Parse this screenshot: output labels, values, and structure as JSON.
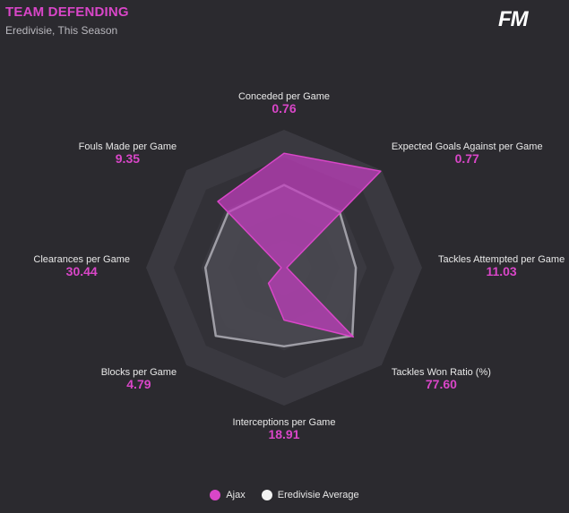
{
  "header": {
    "title": "TEAM DEFENDING",
    "subtitle": "Eredivisie, This Season",
    "logo": "FM"
  },
  "colors": {
    "accent": "#d946c8",
    "team_fill": "#c43fc0",
    "average_stroke": "#9f9ea6",
    "average_fill": "#4b4a52",
    "ring_light": "#3a3940",
    "ring_dark": "#323137",
    "background": "#2b2a2f"
  },
  "chart_data": {
    "type": "radar",
    "title": "TEAM DEFENDING",
    "axes": [
      "Conceded per Game",
      "Expected Goals Against per Game",
      "Tackles Attempted per Game",
      "Tackles Won Ratio (%)",
      "Interceptions per Game",
      "Blocks per Game",
      "Clearances per Game",
      "Fouls Made per Game"
    ],
    "value_labels": [
      "0.76",
      "0.77",
      "11.03",
      "77.60",
      "18.91",
      "4.79",
      "30.44",
      "9.35"
    ],
    "series": [
      {
        "name": "Ajax",
        "normalized": [
          0.83,
          0.99,
          0.02,
          0.71,
          0.38,
          0.16,
          0.02,
          0.68
        ]
      },
      {
        "name": "Eredivisie Average",
        "normalized": [
          0.6,
          0.57,
          0.52,
          0.7,
          0.57,
          0.7,
          0.57,
          0.57
        ]
      }
    ],
    "rings": 5,
    "range": [
      0,
      1
    ]
  },
  "legend": {
    "items": [
      {
        "label": "Ajax"
      },
      {
        "label": "Eredivisie Average"
      }
    ]
  }
}
